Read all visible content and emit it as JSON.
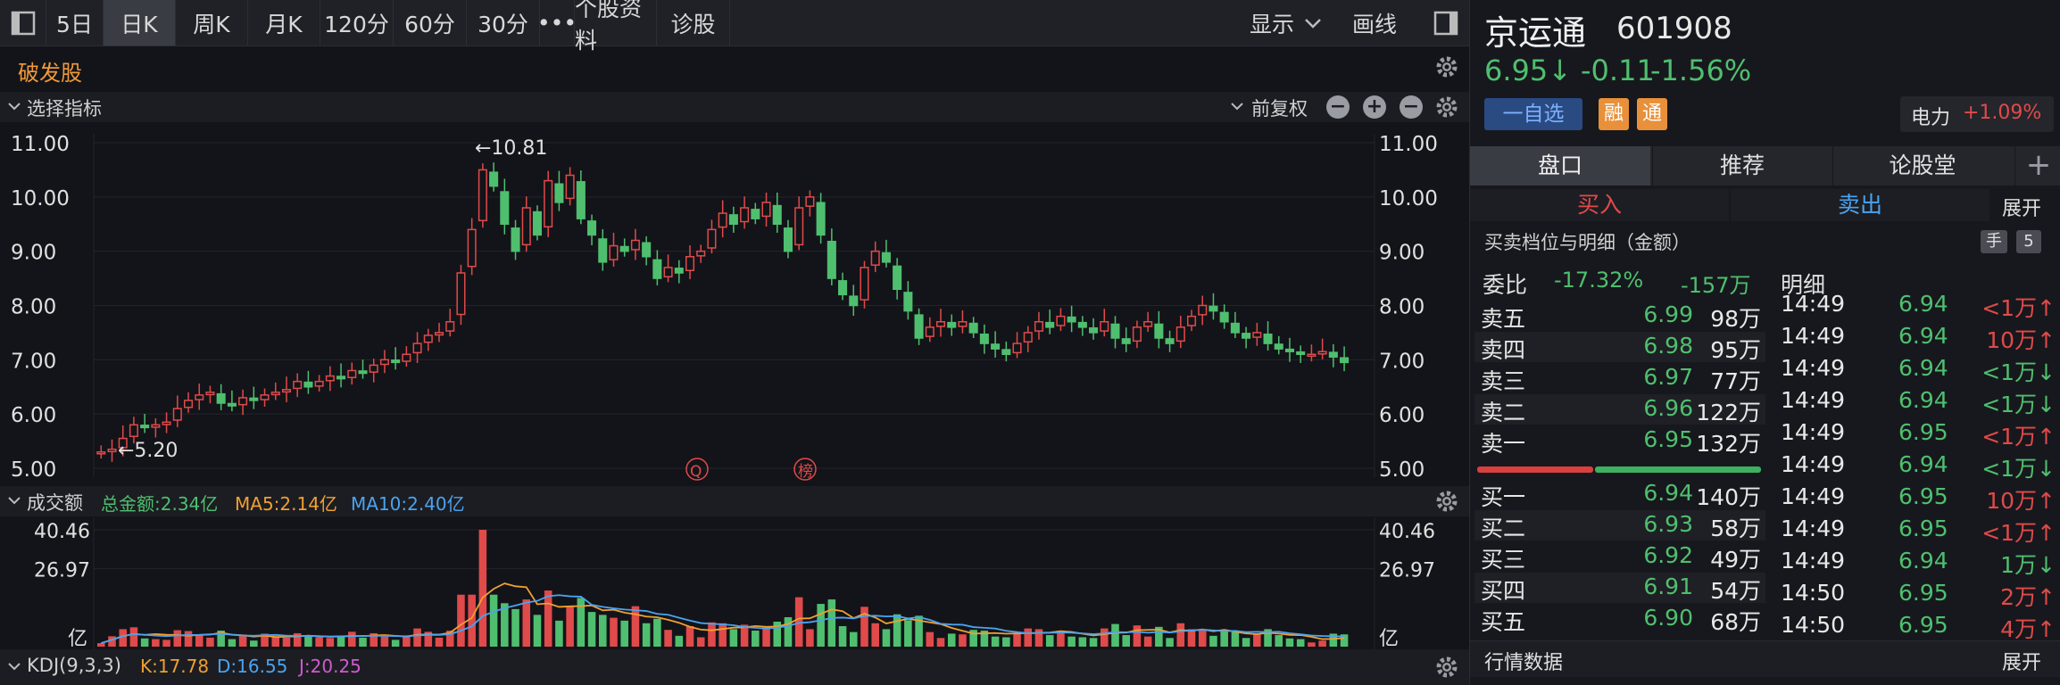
{
  "tabs": [
    {
      "label": "5日",
      "active": false
    },
    {
      "label": "日K",
      "active": true
    },
    {
      "label": "周K",
      "active": false
    },
    {
      "label": "月K",
      "active": false
    },
    {
      "label": "120分",
      "active": false
    },
    {
      "label": "60分",
      "active": false
    },
    {
      "label": "30分",
      "active": false
    },
    {
      "label": "•••",
      "active": false
    },
    {
      "label": "个股资料",
      "active": false
    },
    {
      "label": "诊股",
      "active": false
    }
  ],
  "toolbar": {
    "display_label": "显示",
    "draw_label": "画线"
  },
  "banner": {
    "tag": "破发股"
  },
  "indicator_bar": {
    "label": "选择指标",
    "adjust": "前复权"
  },
  "price_chart": {
    "y_ticks": [
      "11.00",
      "10.00",
      "9.00",
      "8.00",
      "7.00",
      "6.00",
      "5.00"
    ],
    "high_label": "←10.81",
    "low_label": "←5.20",
    "markers": [
      "Q",
      "榜"
    ]
  },
  "volume_bar": {
    "label": "成交额",
    "total": "总金额:2.34亿",
    "ma5": "MA5:2.14亿",
    "ma10": "MA10:2.40亿",
    "y_ticks": [
      "40.46",
      "26.97",
      "亿"
    ]
  },
  "kdj_bar": {
    "label": "KDJ(9,3,3)",
    "k": "K:17.78",
    "d": "D:16.55",
    "j": "J:20.25"
  },
  "colors": {
    "up": "#e04a4a",
    "down": "#4fbf6f",
    "ma5": "#f0a030",
    "ma10": "#4aa3f0"
  },
  "chart_data": {
    "type": "candlestick",
    "ylim": [
      5.0,
      11.0
    ],
    "closes": [
      5.3,
      5.35,
      5.55,
      5.8,
      5.75,
      5.8,
      5.85,
      6.1,
      6.25,
      6.35,
      6.4,
      6.2,
      6.15,
      6.3,
      6.25,
      6.35,
      6.4,
      6.45,
      6.6,
      6.5,
      6.6,
      6.7,
      6.65,
      6.8,
      6.75,
      6.9,
      7.0,
      6.95,
      7.1,
      7.3,
      7.45,
      7.5,
      7.7,
      8.6,
      9.4,
      10.5,
      10.2,
      9.5,
      9.0,
      9.8,
      9.3,
      10.3,
      9.9,
      10.4,
      9.6,
      9.3,
      8.8,
      9.1,
      9.0,
      9.2,
      8.9,
      8.5,
      8.7,
      8.6,
      8.9,
      9.0,
      9.4,
      9.7,
      9.5,
      9.8,
      9.6,
      9.9,
      9.5,
      9.0,
      9.8,
      10.0,
      9.3,
      8.5,
      8.2,
      8.0,
      8.7,
      9.0,
      8.8,
      8.3,
      7.9,
      7.4,
      7.6,
      7.7,
      7.6,
      7.7,
      7.5,
      7.3,
      7.2,
      7.1,
      7.3,
      7.5,
      7.7,
      7.6,
      7.8,
      7.7,
      7.6,
      7.5,
      7.7,
      7.4,
      7.3,
      7.6,
      7.7,
      7.4,
      7.3,
      7.6,
      7.8,
      8.0,
      7.9,
      7.7,
      7.5,
      7.4,
      7.5,
      7.3,
      7.2,
      7.15,
      7.1,
      7.1,
      7.15,
      7.05,
      6.95
    ],
    "volume_amounts": {
      "max": 40.46,
      "unit": "亿"
    }
  },
  "quote": {
    "name": "京运通",
    "code": "601908",
    "price": "6.95↓",
    "change": "-0.11",
    "pct": "-1.56%",
    "watch": "一自选",
    "tag1": "融",
    "tag2": "通",
    "sector": "电力",
    "sector_pct": "+1.09%"
  },
  "rp_tabs": [
    "盘口",
    "推荐",
    "论股堂"
  ],
  "trade": {
    "buy": "买入",
    "sell": "卖出",
    "expand": "展开"
  },
  "depth": {
    "title": "买卖档位与明细（金额）",
    "hand": "手",
    "num": "5",
    "weibi_label": "委比",
    "weibi_pct": "-17.32%",
    "weibi_amt": "-157万",
    "detail_label": "明细",
    "asks": [
      {
        "label": "卖五",
        "price": "6.99",
        "amt": "98万"
      },
      {
        "label": "卖四",
        "price": "6.98",
        "amt": "95万"
      },
      {
        "label": "卖三",
        "price": "6.97",
        "amt": "77万"
      },
      {
        "label": "卖二",
        "price": "6.96",
        "amt": "122万"
      },
      {
        "label": "卖一",
        "price": "6.95",
        "amt": "132万"
      }
    ],
    "bids": [
      {
        "label": "买一",
        "price": "6.94",
        "amt": "140万"
      },
      {
        "label": "买二",
        "price": "6.93",
        "amt": "58万"
      },
      {
        "label": "买三",
        "price": "6.92",
        "amt": "49万"
      },
      {
        "label": "买四",
        "price": "6.91",
        "amt": "54万"
      },
      {
        "label": "买五",
        "price": "6.90",
        "amt": "68万"
      }
    ],
    "ticks": [
      {
        "time": "14:49",
        "price": "6.94",
        "vol": "<1万↑",
        "pc": "green",
        "vc": "red"
      },
      {
        "time": "14:49",
        "price": "6.94",
        "vol": "10万↑",
        "pc": "green",
        "vc": "red"
      },
      {
        "time": "14:49",
        "price": "6.94",
        "vol": "<1万↓",
        "pc": "green",
        "vc": "green"
      },
      {
        "time": "14:49",
        "price": "6.94",
        "vol": "<1万↓",
        "pc": "green",
        "vc": "green"
      },
      {
        "time": "14:49",
        "price": "6.95",
        "vol": "<1万↑",
        "pc": "green",
        "vc": "red"
      },
      {
        "time": "14:49",
        "price": "6.94",
        "vol": "<1万↓",
        "pc": "green",
        "vc": "green"
      },
      {
        "time": "14:49",
        "price": "6.95",
        "vol": "10万↑",
        "pc": "green",
        "vc": "red"
      },
      {
        "time": "14:49",
        "price": "6.95",
        "vol": "<1万↑",
        "pc": "green",
        "vc": "red"
      },
      {
        "time": "14:49",
        "price": "6.94",
        "vol": "1万↓",
        "pc": "green",
        "vc": "green"
      },
      {
        "time": "14:50",
        "price": "6.95",
        "vol": "2万↑",
        "pc": "green",
        "vc": "red"
      },
      {
        "time": "14:50",
        "price": "6.95",
        "vol": "4万↑",
        "pc": "green",
        "vc": "red"
      }
    ]
  },
  "market": {
    "title": "行情数据",
    "expand": "展开"
  }
}
